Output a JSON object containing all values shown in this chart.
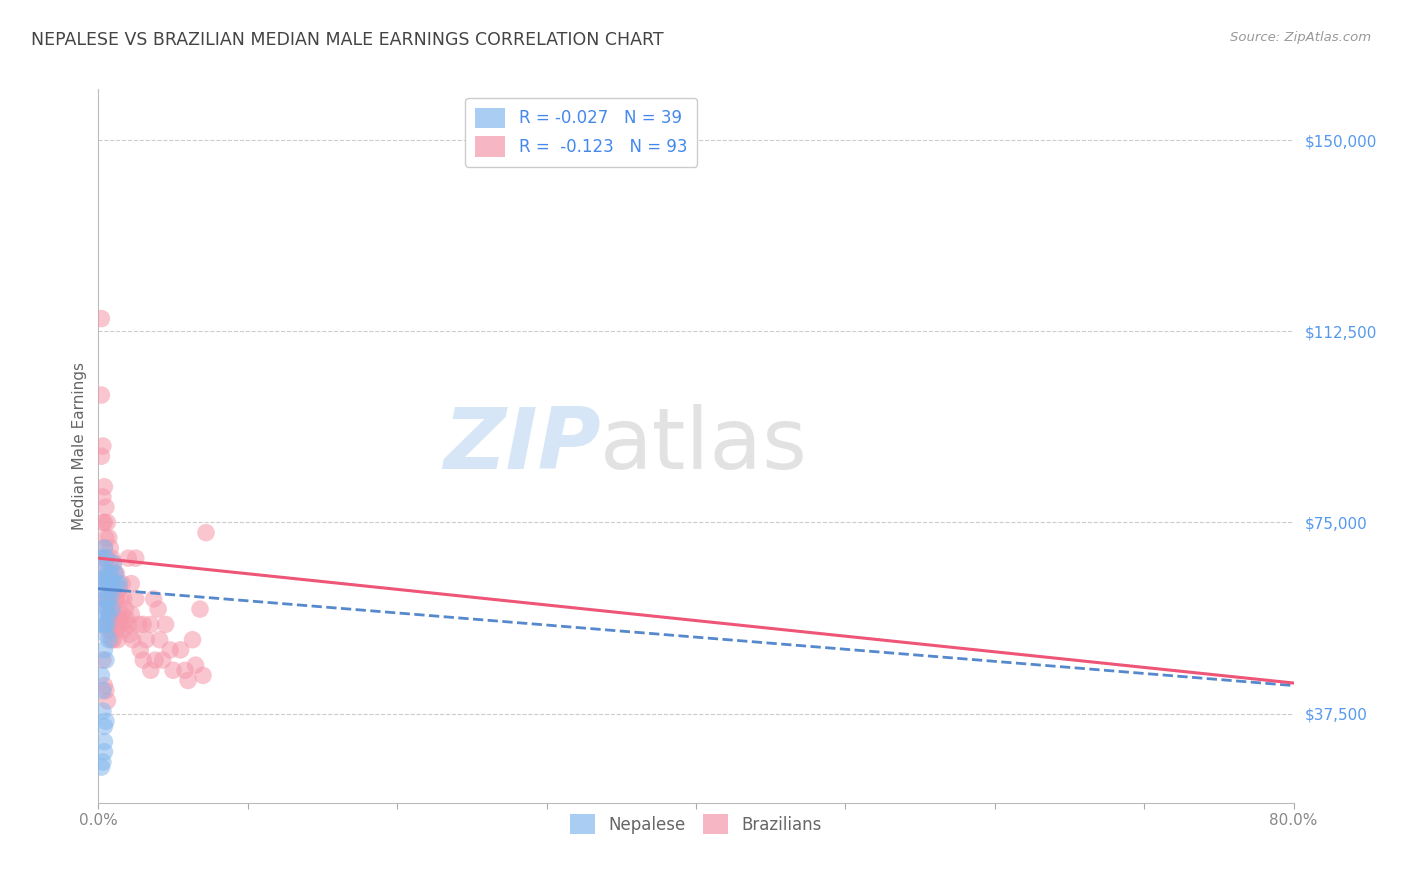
{
  "title": "NEPALESE VS BRAZILIAN MEDIAN MALE EARNINGS CORRELATION CHART",
  "source": "Source: ZipAtlas.com",
  "ylabel": "Median Male Earnings",
  "xlim": [
    0.0,
    0.8
  ],
  "ylim": [
    20000,
    160000
  ],
  "yticks": [
    37500,
    75000,
    112500,
    150000
  ],
  "ytick_labels": [
    "$37,500",
    "$75,000",
    "$112,500",
    "$150,000"
  ],
  "xticks": [
    0.0,
    0.1,
    0.2,
    0.3,
    0.4,
    0.5,
    0.6,
    0.7,
    0.8
  ],
  "xtick_labels": [
    "0.0%",
    "",
    "",
    "",
    "",
    "",
    "",
    "",
    "80.0%"
  ],
  "watermark_zip": "ZIP",
  "watermark_atlas": "atlas",
  "legend_label_nep": "R = -0.027   N = 39",
  "legend_label_bra": "R =  -0.123   N = 93",
  "bottom_label_nep": "Nepalese",
  "bottom_label_bra": "Brazilians",
  "nepalese_color": "#85b8ee",
  "brazilian_color": "#f598aa",
  "trend_nepalese_color": "#5588cc",
  "trend_brazilian_color": "#ee5577",
  "background_color": "#ffffff",
  "grid_color": "#cccccc",
  "title_color": "#444444",
  "ytick_color": "#5599ee",
  "xtick_color": "#888888",
  "trend_nep_x0": 0.0,
  "trend_nep_y0": 62000,
  "trend_nep_x1": 0.8,
  "trend_nep_y1": 43000,
  "trend_bra_x0": 0.0,
  "trend_bra_y0": 68000,
  "trend_bra_x1": 0.8,
  "trend_bra_y1": 43500,
  "nepalese_points": [
    [
      0.002,
      68000
    ],
    [
      0.002,
      62000
    ],
    [
      0.003,
      65000
    ],
    [
      0.003,
      58000
    ],
    [
      0.003,
      55000
    ],
    [
      0.004,
      70000
    ],
    [
      0.004,
      64000
    ],
    [
      0.004,
      60000
    ],
    [
      0.004,
      55000
    ],
    [
      0.004,
      50000
    ],
    [
      0.005,
      68000
    ],
    [
      0.005,
      63000
    ],
    [
      0.005,
      58000
    ],
    [
      0.005,
      53000
    ],
    [
      0.005,
      48000
    ],
    [
      0.006,
      65000
    ],
    [
      0.006,
      60000
    ],
    [
      0.006,
      55000
    ],
    [
      0.007,
      63000
    ],
    [
      0.007,
      57000
    ],
    [
      0.007,
      52000
    ],
    [
      0.008,
      65000
    ],
    [
      0.008,
      60000
    ],
    [
      0.009,
      63000
    ],
    [
      0.009,
      58000
    ],
    [
      0.01,
      67000
    ],
    [
      0.01,
      62000
    ],
    [
      0.011,
      65000
    ],
    [
      0.012,
      63000
    ],
    [
      0.014,
      63000
    ],
    [
      0.002,
      45000
    ],
    [
      0.003,
      42000
    ],
    [
      0.003,
      38000
    ],
    [
      0.004,
      35000
    ],
    [
      0.004,
      32000
    ],
    [
      0.004,
      30000
    ],
    [
      0.005,
      36000
    ],
    [
      0.003,
      28000
    ],
    [
      0.002,
      27000
    ]
  ],
  "brazilian_points": [
    [
      0.002,
      115000
    ],
    [
      0.002,
      100000
    ],
    [
      0.002,
      88000
    ],
    [
      0.003,
      90000
    ],
    [
      0.003,
      80000
    ],
    [
      0.003,
      75000
    ],
    [
      0.003,
      68000
    ],
    [
      0.004,
      82000
    ],
    [
      0.004,
      75000
    ],
    [
      0.004,
      70000
    ],
    [
      0.004,
      65000
    ],
    [
      0.004,
      60000
    ],
    [
      0.005,
      78000
    ],
    [
      0.005,
      72000
    ],
    [
      0.005,
      68000
    ],
    [
      0.005,
      64000
    ],
    [
      0.005,
      60000
    ],
    [
      0.005,
      55000
    ],
    [
      0.006,
      75000
    ],
    [
      0.006,
      68000
    ],
    [
      0.006,
      63000
    ],
    [
      0.006,
      58000
    ],
    [
      0.006,
      54000
    ],
    [
      0.007,
      72000
    ],
    [
      0.007,
      65000
    ],
    [
      0.007,
      60000
    ],
    [
      0.007,
      56000
    ],
    [
      0.008,
      70000
    ],
    [
      0.008,
      64000
    ],
    [
      0.008,
      58000
    ],
    [
      0.008,
      54000
    ],
    [
      0.009,
      68000
    ],
    [
      0.009,
      62000
    ],
    [
      0.009,
      57000
    ],
    [
      0.009,
      52000
    ],
    [
      0.01,
      67000
    ],
    [
      0.01,
      62000
    ],
    [
      0.01,
      57000
    ],
    [
      0.01,
      52000
    ],
    [
      0.011,
      65000
    ],
    [
      0.011,
      60000
    ],
    [
      0.011,
      55000
    ],
    [
      0.012,
      65000
    ],
    [
      0.012,
      60000
    ],
    [
      0.012,
      54000
    ],
    [
      0.013,
      62000
    ],
    [
      0.013,
      57000
    ],
    [
      0.013,
      52000
    ],
    [
      0.014,
      62000
    ],
    [
      0.014,
      56000
    ],
    [
      0.015,
      60000
    ],
    [
      0.015,
      55000
    ],
    [
      0.016,
      63000
    ],
    [
      0.016,
      57000
    ],
    [
      0.017,
      60000
    ],
    [
      0.017,
      54000
    ],
    [
      0.018,
      58000
    ],
    [
      0.019,
      56000
    ],
    [
      0.02,
      68000
    ],
    [
      0.02,
      55000
    ],
    [
      0.021,
      53000
    ],
    [
      0.022,
      63000
    ],
    [
      0.022,
      57000
    ],
    [
      0.023,
      52000
    ],
    [
      0.025,
      68000
    ],
    [
      0.025,
      60000
    ],
    [
      0.027,
      55000
    ],
    [
      0.028,
      50000
    ],
    [
      0.03,
      55000
    ],
    [
      0.03,
      48000
    ],
    [
      0.032,
      52000
    ],
    [
      0.035,
      55000
    ],
    [
      0.035,
      46000
    ],
    [
      0.037,
      60000
    ],
    [
      0.038,
      48000
    ],
    [
      0.04,
      58000
    ],
    [
      0.041,
      52000
    ],
    [
      0.043,
      48000
    ],
    [
      0.045,
      55000
    ],
    [
      0.048,
      50000
    ],
    [
      0.05,
      46000
    ],
    [
      0.055,
      50000
    ],
    [
      0.058,
      46000
    ],
    [
      0.06,
      44000
    ],
    [
      0.063,
      52000
    ],
    [
      0.065,
      47000
    ],
    [
      0.068,
      58000
    ],
    [
      0.07,
      45000
    ],
    [
      0.072,
      73000
    ],
    [
      0.003,
      48000
    ],
    [
      0.004,
      43000
    ],
    [
      0.005,
      42000
    ],
    [
      0.006,
      40000
    ]
  ]
}
